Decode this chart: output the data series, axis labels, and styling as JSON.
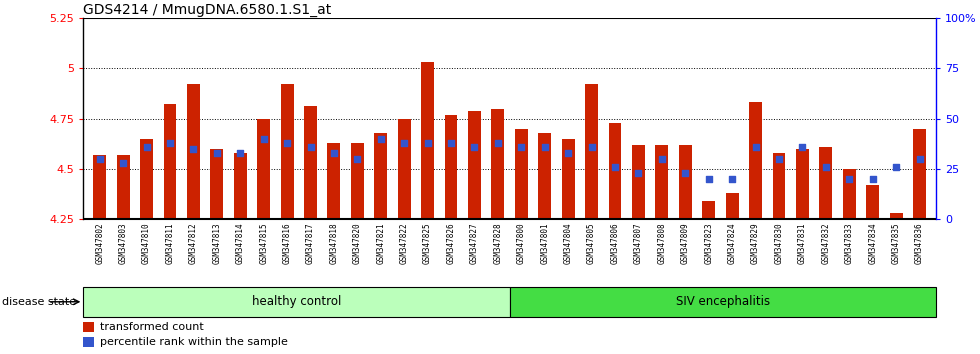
{
  "title": "GDS4214 / MmugDNA.6580.1.S1_at",
  "samples": [
    "GSM347802",
    "GSM347803",
    "GSM347810",
    "GSM347811",
    "GSM347812",
    "GSM347813",
    "GSM347814",
    "GSM347815",
    "GSM347816",
    "GSM347817",
    "GSM347818",
    "GSM347820",
    "GSM347821",
    "GSM347822",
    "GSM347825",
    "GSM347826",
    "GSM347827",
    "GSM347828",
    "GSM347800",
    "GSM347801",
    "GSM347804",
    "GSM347805",
    "GSM347806",
    "GSM347807",
    "GSM347808",
    "GSM347809",
    "GSM347823",
    "GSM347824",
    "GSM347829",
    "GSM347830",
    "GSM347831",
    "GSM347832",
    "GSM347833",
    "GSM347834",
    "GSM347835",
    "GSM347836"
  ],
  "bar_values": [
    4.57,
    4.57,
    4.65,
    4.82,
    4.92,
    4.6,
    4.58,
    4.75,
    4.92,
    4.81,
    4.63,
    4.63,
    4.68,
    4.75,
    5.03,
    4.77,
    4.79,
    4.8,
    4.7,
    4.68,
    4.65,
    4.92,
    4.73,
    4.62,
    4.62,
    4.62,
    4.34,
    4.38,
    4.83,
    4.58,
    4.6,
    4.61,
    4.5,
    4.42,
    4.28,
    4.7
  ],
  "percentile_values": [
    30,
    28,
    36,
    38,
    35,
    33,
    33,
    40,
    38,
    36,
    33,
    30,
    40,
    38,
    38,
    38,
    36,
    38,
    36,
    36,
    33,
    36,
    26,
    23,
    30,
    23,
    20,
    20,
    36,
    30,
    36,
    26,
    20,
    20,
    26,
    30
  ],
  "healthy_count": 18,
  "ymin": 4.25,
  "ymax": 5.25,
  "yticks": [
    4.25,
    4.5,
    4.75,
    5.0,
    5.25
  ],
  "ytick_labels": [
    "4.25",
    "4.5",
    "4.75",
    "5",
    "5.25"
  ],
  "bar_color": "#cc2200",
  "dot_color": "#3355cc",
  "healthy_color": "#bbffbb",
  "siv_color": "#44dd44",
  "title_fontsize": 10
}
